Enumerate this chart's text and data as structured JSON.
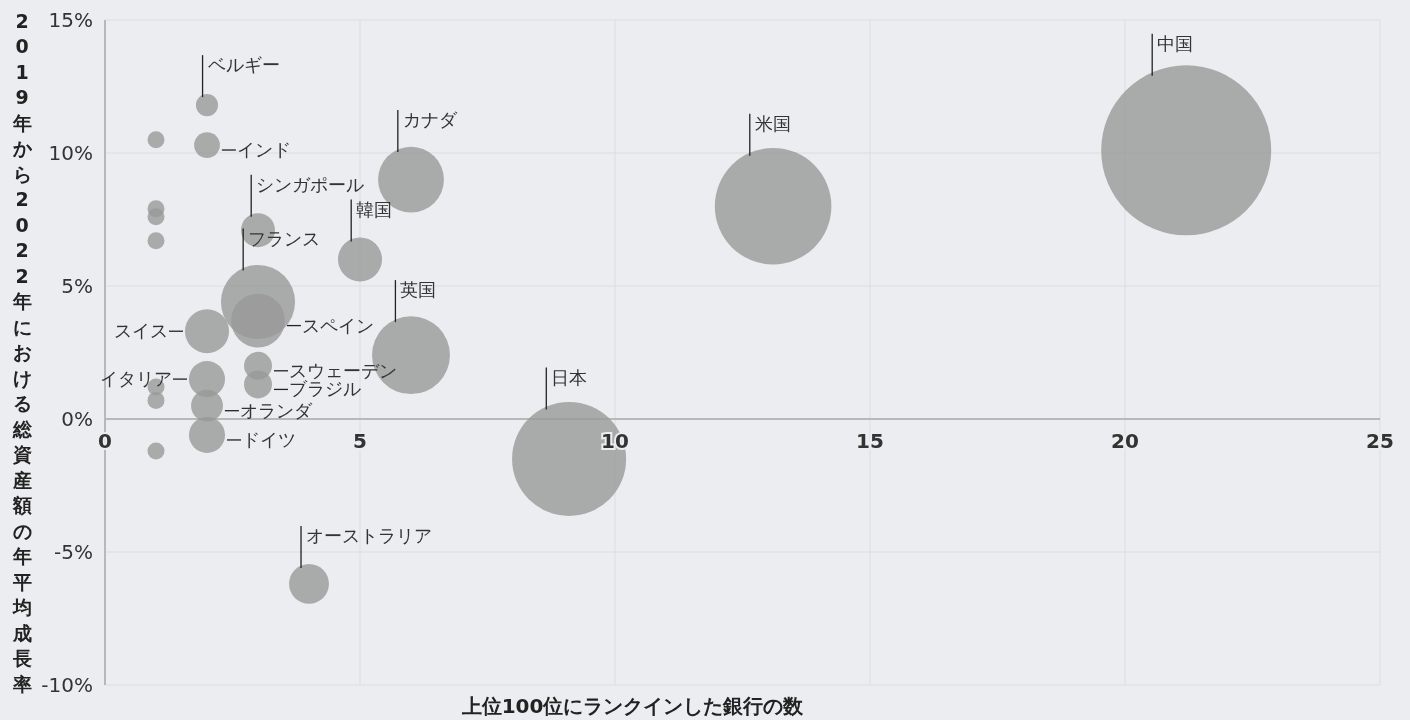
{
  "chart_data": {
    "type": "bubble",
    "xlabel": "上位100位にランクインした銀行の数",
    "ylabel": "2019年から2022年における総資産額の年平均成長率",
    "x": [
      21.2,
      13.1,
      9.1,
      6,
      6,
      5,
      4,
      3,
      3,
      3,
      3,
      3,
      2,
      2,
      2,
      2,
      2,
      2,
      1,
      1,
      1,
      1,
      1,
      1,
      1
    ],
    "values": [
      10.1,
      8.0,
      -1.5,
      2.4,
      9.0,
      6.0,
      -6.2,
      7.1,
      4.4,
      3.7,
      2.0,
      1.3,
      11.8,
      10.3,
      3.3,
      1.5,
      0.5,
      -0.6,
      10.5,
      7.9,
      7.6,
      6.7,
      1.2,
      0.7,
      -1.2
    ],
    "sizes": [
      1,
      0.47,
      0.45,
      0.21,
      0.15,
      0.067,
      0.055,
      0.04,
      0.19,
      0.1,
      0.027,
      0.027,
      0.017,
      0.023,
      0.067,
      0.045,
      0.035,
      0.045,
      0.01,
      0.01,
      0.01,
      0.01,
      0.01,
      0.01,
      0.01
    ],
    "color": "#999999",
    "marker": "circle",
    "grid": true,
    "xlim": [
      0,
      25
    ],
    "ylim": [
      -10,
      15
    ],
    "xticks": [
      0,
      5,
      10,
      15,
      20,
      25
    ],
    "yticks": [
      {
        "value": -10,
        "label": "-10%"
      },
      {
        "value": -5,
        "label": "-5%"
      },
      {
        "value": 0,
        "label": "0%"
      },
      {
        "value": 5,
        "label": "5%"
      },
      {
        "value": 10,
        "label": "10%"
      },
      {
        "value": 15,
        "label": "15%"
      }
    ],
    "annotations": [
      "中国",
      "米国",
      "日本",
      "英国",
      {
        "text": "カナダ",
        "x": 6,
        "y": 9.0
      },
      {
        "text": "韓国",
        "x": 5,
        "y": 6.0
      },
      {
        "text": "オーストラリア",
        "x": 4,
        "y": -6.2
      },
      {
        "text": "シンガポール",
        "x": 3,
        "y": 7.1
      },
      {
        "text": "フランス",
        "x": 3,
        "y": 4.4
      },
      {
        "text": "スペイン",
        "x": 3,
        "y": 3.7
      },
      {
        "text": "スウェーデン",
        "x": 3,
        "y": 2.0
      },
      {
        "text": "ブラジル",
        "x": 3,
        "y": 1.3
      },
      {
        "text": "ベルギー",
        "x": 2,
        "y": 11.8
      },
      {
        "text": "インド",
        "x": 2,
        "y": 10.3
      },
      {
        "text": "スイス",
        "x": 2,
        "y": 3.3
      },
      {
        "text": "イタリア",
        "x": 2,
        "y": 1.5
      },
      {
        "text": "オランダ",
        "x": 2,
        "y": 0.5
      },
      {
        "text": "ドイツ",
        "x": 2,
        "y": -0.6
      }
    ]
  }
}
